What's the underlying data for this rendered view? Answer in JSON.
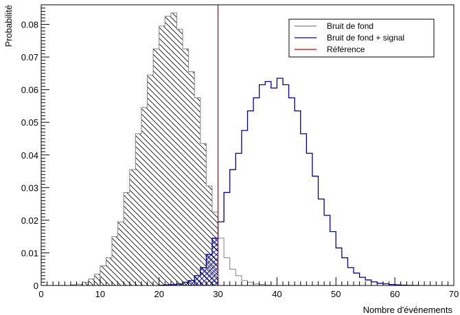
{
  "chart_data": {
    "type": "bar",
    "title": "",
    "xlabel": "Nombre d'événements",
    "ylabel": "Probabilité",
    "xlim": [
      0,
      70
    ],
    "ylim": [
      0,
      0.086
    ],
    "xticks": [
      0,
      10,
      20,
      30,
      40,
      50,
      60,
      70
    ],
    "yticks": [
      0,
      0.01,
      0.02,
      0.03,
      0.04,
      0.05,
      0.06,
      0.07,
      0.08
    ],
    "ytick_labels": [
      "0",
      "0.01",
      "0.02",
      "0.03",
      "0.04",
      "0.05",
      "0.06",
      "0.07",
      "0.08"
    ],
    "grid": false,
    "legend_position": "top-right",
    "bin_width": 1,
    "reference_x": 30,
    "colors": {
      "background": "#808080",
      "signal": "#00008b",
      "reference": "#cc0000",
      "frame": "#000000"
    },
    "series": [
      {
        "name": "Bruit de fond",
        "x": [
          5,
          6,
          7,
          8,
          9,
          10,
          11,
          12,
          13,
          14,
          15,
          16,
          17,
          18,
          19,
          20,
          21,
          22,
          23,
          24,
          25,
          26,
          27,
          28,
          29,
          30,
          31,
          32,
          33,
          34,
          35,
          36,
          37,
          38
        ],
        "values": [
          0.0002,
          0.0004,
          0.001,
          0.002,
          0.0035,
          0.006,
          0.0085,
          0.015,
          0.0195,
          0.0285,
          0.0355,
          0.0465,
          0.0545,
          0.0645,
          0.0725,
          0.0795,
          0.0825,
          0.0835,
          0.0785,
          0.0725,
          0.0655,
          0.0575,
          0.0435,
          0.0305,
          0.0225,
          0.0145,
          0.0085,
          0.005,
          0.003,
          0.0015,
          0.001,
          0.0005,
          0.0003,
          0.0001
        ]
      },
      {
        "name": "Bruit de fond + signal",
        "x": [
          20,
          21,
          22,
          23,
          24,
          25,
          26,
          27,
          28,
          29,
          30,
          31,
          32,
          33,
          34,
          35,
          36,
          37,
          38,
          39,
          40,
          41,
          42,
          43,
          44,
          45,
          46,
          47,
          48,
          49,
          50,
          51,
          52,
          53,
          54,
          55,
          56,
          57,
          58,
          59,
          60,
          61,
          62,
          63
        ],
        "values": [
          0.0001,
          0.0002,
          0.0003,
          0.0005,
          0.001,
          0.0015,
          0.003,
          0.0055,
          0.0095,
          0.0145,
          0.0195,
          0.0285,
          0.0355,
          0.0405,
          0.0475,
          0.0535,
          0.0575,
          0.0615,
          0.0625,
          0.0605,
          0.0635,
          0.0615,
          0.0575,
          0.0535,
          0.0465,
          0.0405,
          0.0335,
          0.0265,
          0.0215,
          0.0165,
          0.0115,
          0.0085,
          0.0055,
          0.0038,
          0.0025,
          0.0017,
          0.0011,
          0.0007,
          0.0005,
          0.0003,
          0.0002,
          0.0001,
          5e-05,
          2e-05
        ]
      },
      {
        "name": "Référence",
        "x": [
          30,
          30
        ],
        "values": [
          0,
          0.086
        ]
      }
    ]
  }
}
